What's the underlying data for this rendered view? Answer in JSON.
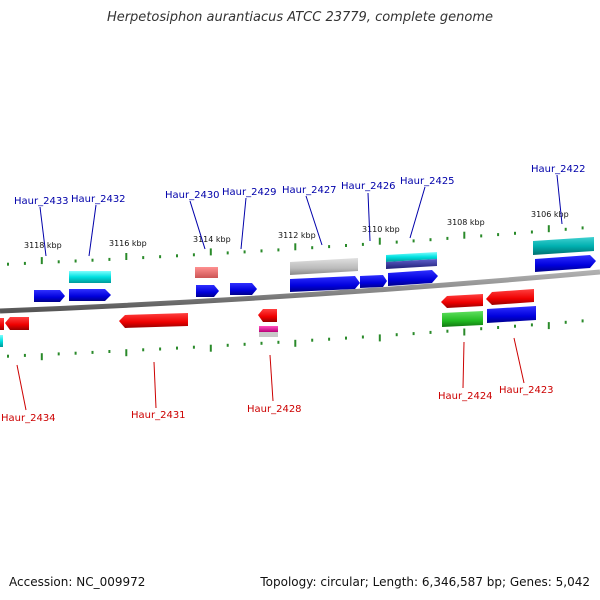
{
  "title": "Herpetosiphon aurantiacus ATCC 23779, complete genome",
  "footer": {
    "accession": "Accession: NC_009972",
    "topology": "Topology: circular; Length: 6,346,587 bp; Genes: 5,042"
  },
  "colors": {
    "forward_label": "#0000aa",
    "reverse_label": "#cc0000",
    "backbone": "#888888",
    "ticks": "#2a8a2a"
  },
  "kbp_labels": [
    "3118 kbp",
    "3116 kbp",
    "3114 kbp",
    "3112 kbp",
    "3110 kbp",
    "3108 kbp",
    "3106 kbp"
  ],
  "forward_genes": [
    "Haur_2433",
    "Haur_2432",
    "Haur_2430",
    "Haur_2429",
    "Haur_2427",
    "Haur_2426",
    "Haur_2425",
    "Haur_2422"
  ],
  "reverse_genes": [
    "Haur_2434",
    "Haur_2431",
    "Haur_2428",
    "Haur_2424",
    "Haur_2423"
  ]
}
